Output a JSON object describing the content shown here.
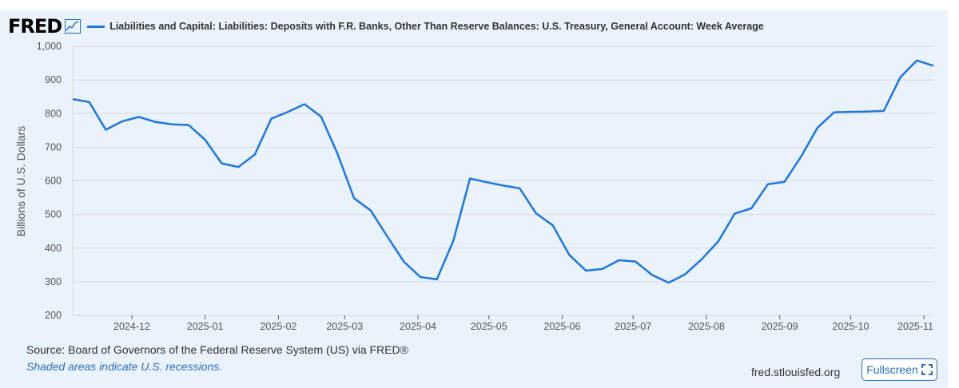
{
  "header": {
    "logo": "FRED",
    "series_title": "Liabilities and Capital: Liabilities: Deposits with F.R. Banks, Other Than Reserve Balances: U.S. Treasury, General Account: Week Average"
  },
  "colors": {
    "line": "#1f77d9",
    "grid": "#d9d9d9",
    "accent": "#2a6fb7"
  },
  "chart_data": {
    "type": "line",
    "title": "Liabilities and Capital: Liabilities: Deposits with F.R. Banks, Other Than Reserve Balances: U.S. Treasury, General Account: Week Average",
    "ylabel": "Billions of U.S. Dollars",
    "xlabel": "",
    "ylim": [
      200,
      1000
    ],
    "yticks": [
      200,
      300,
      400,
      500,
      600,
      700,
      800,
      900,
      1000
    ],
    "ytick_labels": [
      "200",
      "300",
      "400",
      "500",
      "600",
      "700",
      "800",
      "900",
      "1,000"
    ],
    "x_start": "2024-11-06",
    "x_end": "2025-11-05",
    "xticks": [
      "2024-12",
      "2025-01",
      "2025-02",
      "2025-03",
      "2025-04",
      "2025-05",
      "2025-06",
      "2025-07",
      "2025-08",
      "2025-09",
      "2025-10",
      "2025-11"
    ],
    "xtick_labels": [
      "2024-12",
      "2025-01",
      "2025-02",
      "2025-03",
      "2025-04",
      "2025-05",
      "2025-06",
      "2025-07",
      "2025-08",
      "2025-09",
      "2025-10",
      "2025-11"
    ],
    "series": [
      {
        "name": "Week Average",
        "dates": [
          "2024-11-06",
          "2024-11-13",
          "2024-11-20",
          "2024-11-27",
          "2024-12-04",
          "2024-12-11",
          "2024-12-18",
          "2024-12-25",
          "2025-01-01",
          "2025-01-08",
          "2025-01-15",
          "2025-01-22",
          "2025-01-29",
          "2025-02-05",
          "2025-02-12",
          "2025-02-19",
          "2025-02-26",
          "2025-03-05",
          "2025-03-12",
          "2025-03-19",
          "2025-03-26",
          "2025-04-02",
          "2025-04-09",
          "2025-04-16",
          "2025-04-23",
          "2025-04-30",
          "2025-05-07",
          "2025-05-14",
          "2025-05-21",
          "2025-05-28",
          "2025-06-04",
          "2025-06-11",
          "2025-06-18",
          "2025-06-25",
          "2025-07-02",
          "2025-07-09",
          "2025-07-16",
          "2025-07-23",
          "2025-07-30",
          "2025-08-06",
          "2025-08-13",
          "2025-08-20",
          "2025-08-27",
          "2025-09-03",
          "2025-09-10",
          "2025-09-17",
          "2025-09-24",
          "2025-10-01",
          "2025-10-08",
          "2025-10-15",
          "2025-10-22",
          "2025-10-29",
          "2025-11-05"
        ],
        "values": [
          843,
          834,
          752,
          777,
          790,
          775,
          768,
          766,
          722,
          652,
          641,
          678,
          785,
          805,
          828,
          791,
          680,
          548,
          512,
          435,
          360,
          314,
          307,
          423,
          607,
          596,
          586,
          578,
          503,
          468,
          380,
          333,
          338,
          364,
          360,
          320,
          297,
          322,
          367,
          420,
          503,
          518,
          590,
          597,
          672,
          758,
          804,
          805,
          806,
          808,
          908,
          958,
          942
        ]
      }
    ]
  },
  "footer": {
    "source": "Source: Board of Governors of the Federal Reserve System (US) via FRED®",
    "recessions": "Shaded areas indicate U.S. recessions.",
    "site": "fred.stlouisfed.org",
    "fullscreen_label": "Fullscreen"
  }
}
